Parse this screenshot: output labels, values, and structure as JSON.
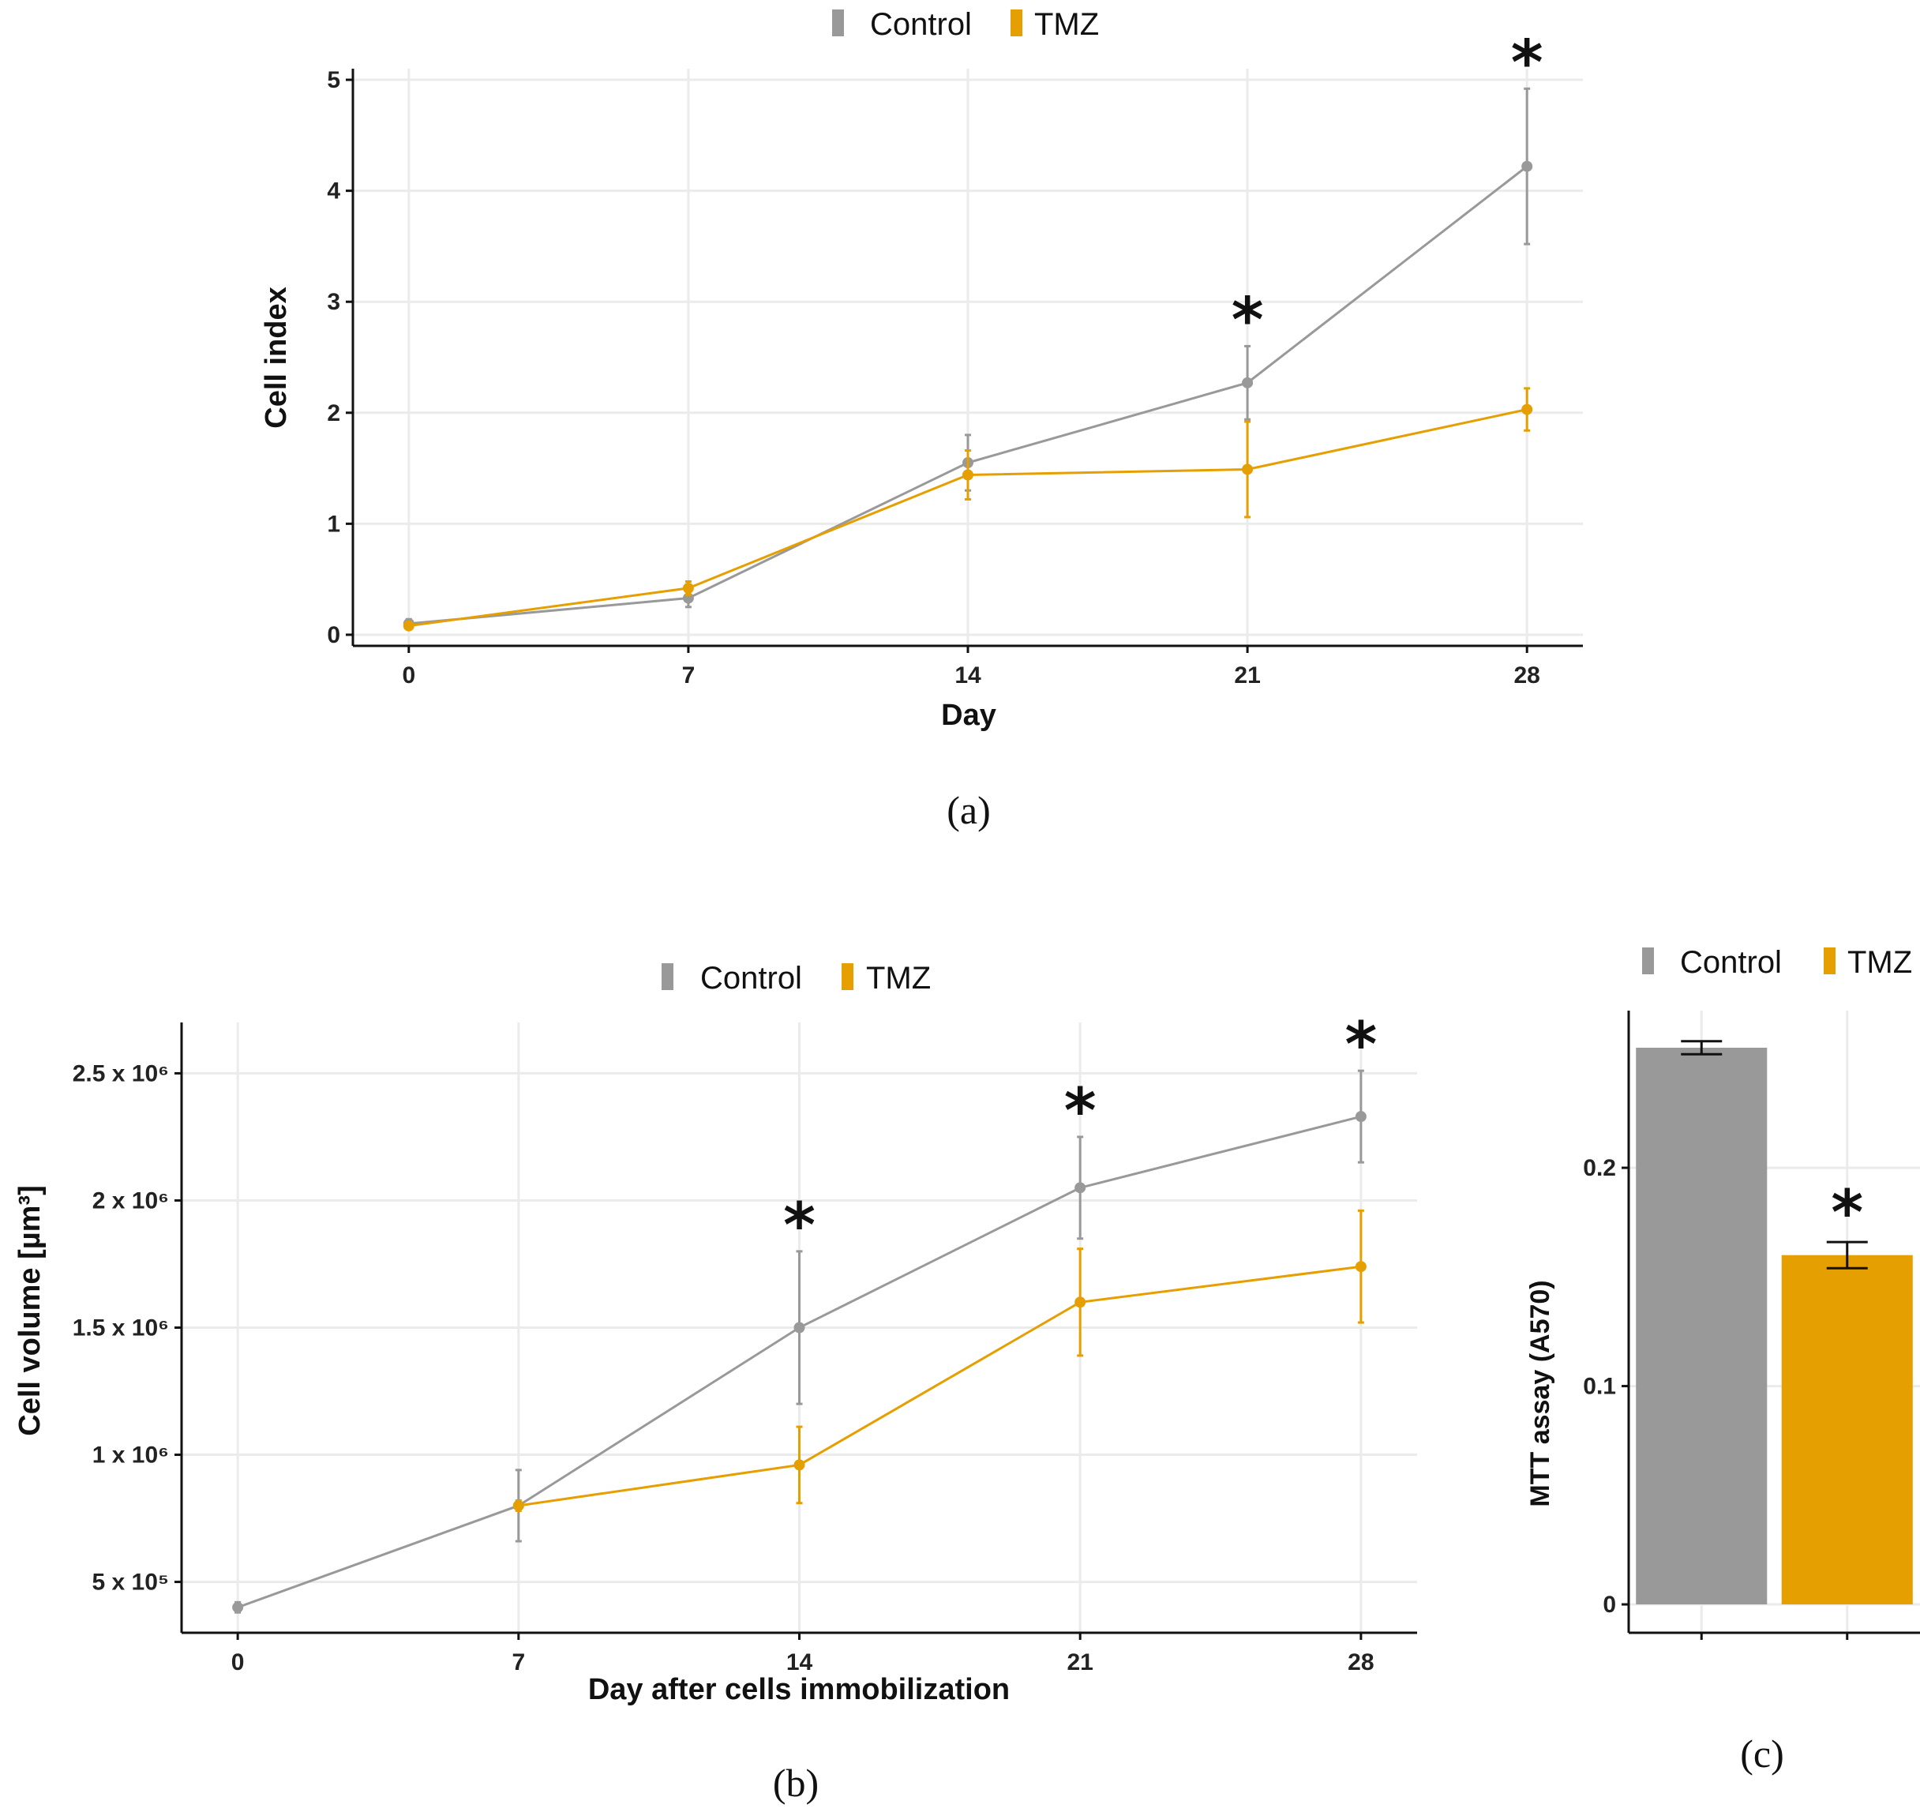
{
  "colors": {
    "control": "#999999",
    "tmz": "#E69F00",
    "errorbar": "#111111"
  },
  "chart_data": [
    {
      "panel": "(a)",
      "type": "line",
      "xlabel": "Day",
      "ylabel": "Cell index",
      "legend": {
        "position": "top",
        "entries": [
          "Control",
          "TMZ"
        ]
      },
      "x": [
        0,
        7,
        14,
        21,
        28
      ],
      "xticks": [
        "0",
        "7",
        "14",
        "21",
        "28"
      ],
      "ylim": [
        -0.1,
        5.1
      ],
      "yticks": [
        0,
        1,
        2,
        3,
        4,
        5
      ],
      "ytick_labels": [
        "0",
        "1",
        "2",
        "3",
        "4",
        "5"
      ],
      "grid": true,
      "series": [
        {
          "name": "Control",
          "color": "#999999",
          "values": [
            0.1,
            0.33,
            1.55,
            2.27,
            4.22
          ],
          "err": [
            0.04,
            0.08,
            0.25,
            0.33,
            0.7
          ]
        },
        {
          "name": "TMZ",
          "color": "#E69F00",
          "values": [
            0.08,
            0.42,
            1.44,
            1.49,
            2.03
          ],
          "err": [
            0.03,
            0.06,
            0.22,
            0.43,
            0.19
          ]
        }
      ],
      "significance": [
        {
          "x": 21,
          "label": "*"
        },
        {
          "x": 28,
          "label": "*"
        }
      ]
    },
    {
      "panel": "(b)",
      "type": "line",
      "xlabel": "Day after cells immobilization",
      "ylabel": "Cell volume [µm³]",
      "legend": {
        "position": "top",
        "entries": [
          "Control",
          "TMZ"
        ]
      },
      "x": [
        0,
        7,
        14,
        21,
        28
      ],
      "xticks": [
        "0",
        "7",
        "14",
        "21",
        "28"
      ],
      "ylim": [
        300000,
        2700000
      ],
      "yticks": [
        500000,
        1000000,
        1500000,
        2000000,
        2500000
      ],
      "ytick_labels": [
        "5 x 10⁵",
        "1 x 10⁶",
        "1.5 x 10⁶",
        "2 x 10⁶",
        "2.5 x 10⁶"
      ],
      "grid": true,
      "series": [
        {
          "name": "Control",
          "color": "#999999",
          "values": [
            400000,
            800000,
            1500000,
            2050000,
            2330000
          ],
          "err": [
            20000,
            140000,
            300000,
            200000,
            180000
          ]
        },
        {
          "name": "TMZ",
          "color": "#E69F00",
          "values": [
            null,
            800000,
            960000,
            1600000,
            1740000
          ],
          "err": [
            null,
            20000,
            150000,
            210000,
            220000
          ]
        }
      ],
      "significance": [
        {
          "x": 14,
          "label": "*"
        },
        {
          "x": 21,
          "label": "*"
        },
        {
          "x": 28,
          "label": "*"
        }
      ]
    },
    {
      "panel": "(c)",
      "type": "bar",
      "xlabel": "",
      "ylabel": "MTT assay (A570)",
      "legend": {
        "position": "top",
        "entries": [
          "Control",
          "TMZ"
        ]
      },
      "categories": [
        "Control",
        "TMZ"
      ],
      "ylim": [
        -0.013,
        0.272
      ],
      "yticks": [
        0,
        0.1,
        0.2
      ],
      "ytick_labels": [
        "0",
        "0.1",
        "0.2"
      ],
      "grid": true,
      "series": [
        {
          "name": "Control",
          "color": "#999999",
          "value": 0.255,
          "err": 0.003
        },
        {
          "name": "TMZ",
          "color": "#E69F00",
          "value": 0.16,
          "err": 0.006
        }
      ],
      "significance": [
        {
          "category": "TMZ",
          "label": "*"
        }
      ]
    }
  ]
}
